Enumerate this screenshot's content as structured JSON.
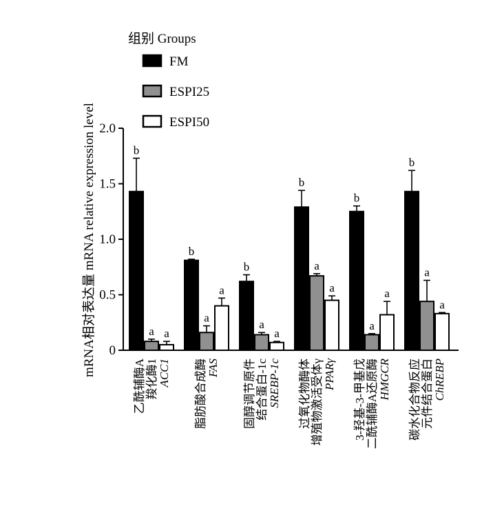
{
  "chart_data": {
    "type": "bar",
    "ylabel": "mRNA相对表达量 mRNA relative expression level",
    "ylim": [
      0,
      2.0
    ],
    "yticks": [
      "0",
      "0.5",
      "1.0",
      "1.5",
      "2.0"
    ],
    "legend": {
      "title": "组别 Groups",
      "placement": "top-left"
    },
    "categories": [
      {
        "lines_cn": [
          "乙酰辅酶A",
          "羧化酶1"
        ],
        "abbr": "ACC1"
      },
      {
        "lines_cn": [
          "脂肪酸合成酶"
        ],
        "abbr": "FAS"
      },
      {
        "lines_cn": [
          "固醇调节原件",
          "结合蛋白-1c"
        ],
        "abbr": "SREBP-1c"
      },
      {
        "lines_cn": [
          "过氧化物酶体",
          "增殖物激活受体γ"
        ],
        "abbr": "PPARγ"
      },
      {
        "lines_cn": [
          "3-羟基-3-甲基戊",
          "二酰辅酶A还原酶"
        ],
        "abbr": "HMGCR"
      },
      {
        "lines_cn": [
          "碳水化合物反应",
          "元件结合蛋白"
        ],
        "abbr": "ChREBP"
      }
    ],
    "series": [
      {
        "name": "FM",
        "color": "#000000",
        "values": [
          1.43,
          0.81,
          0.62,
          1.29,
          1.25,
          1.43
        ],
        "errors": [
          0.3,
          0.01,
          0.06,
          0.15,
          0.05,
          0.19
        ],
        "labels": [
          "b",
          "b",
          "b",
          "b",
          "b",
          "b"
        ]
      },
      {
        "name": "ESPI25",
        "color": "#909090",
        "values": [
          0.08,
          0.16,
          0.14,
          0.67,
          0.14,
          0.44
        ],
        "errors": [
          0.02,
          0.06,
          0.02,
          0.02,
          0.01,
          0.19
        ],
        "labels": [
          "a",
          "a",
          "a",
          "a",
          "a",
          "a"
        ]
      },
      {
        "name": "ESPI50",
        "color": "#ffffff",
        "values": [
          0.05,
          0.4,
          0.07,
          0.45,
          0.32,
          0.33
        ],
        "errors": [
          0.03,
          0.07,
          0.01,
          0.04,
          0.12,
          0.01
        ],
        "labels": [
          "a",
          "a",
          "a",
          "a",
          "a",
          "a"
        ]
      }
    ]
  }
}
